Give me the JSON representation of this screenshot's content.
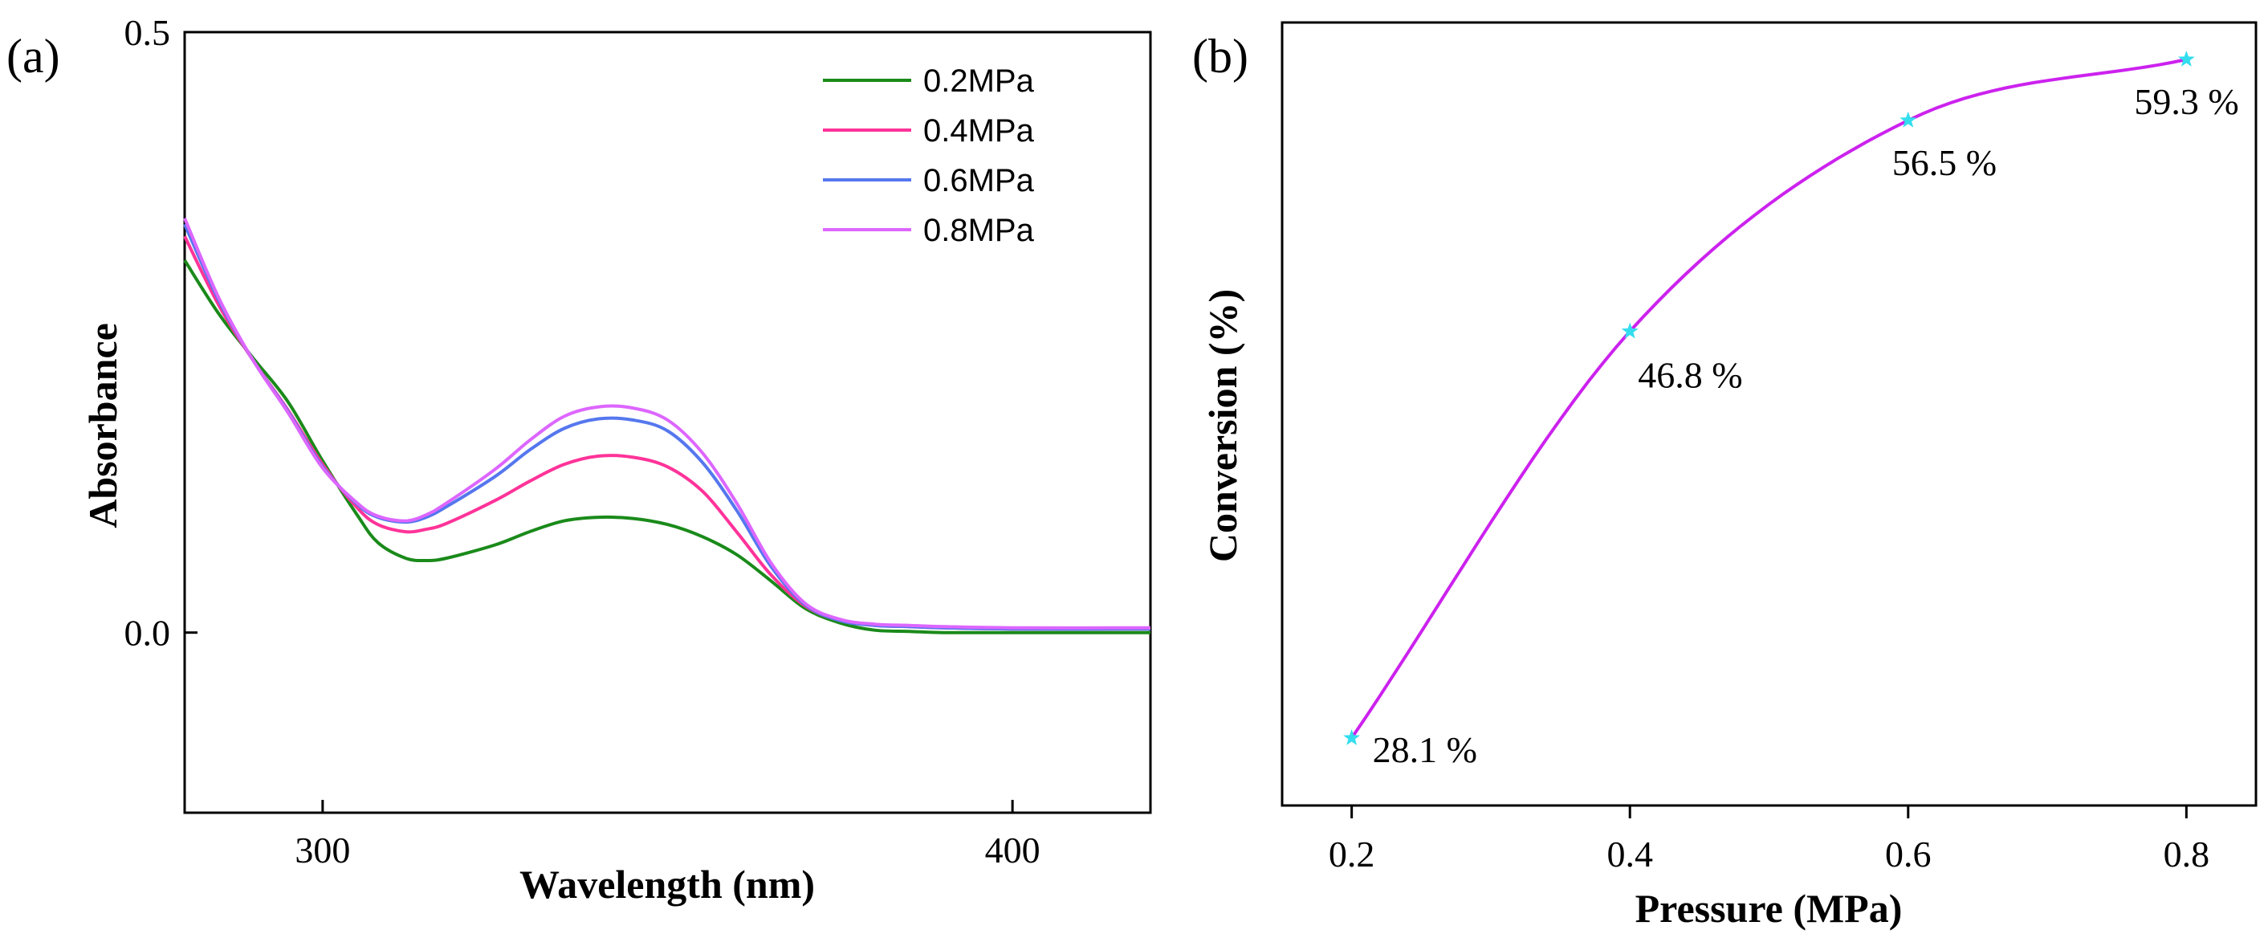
{
  "chart_data": [
    {
      "panel_label": "(a)",
      "type": "line",
      "xlabel": "Wavelength (nm)",
      "ylabel": "Absorbance",
      "xlim": [
        280,
        420
      ],
      "ylim": [
        -0.15,
        0.5
      ],
      "xticks": [
        {
          "value": 300,
          "label": "300"
        },
        {
          "value": 400,
          "label": "400"
        }
      ],
      "yticks": [
        {
          "value": 0.0,
          "label": "0.0"
        },
        {
          "value": 0.5,
          "label": "0.5"
        }
      ],
      "legend_position": "top-right",
      "series": [
        {
          "name": "0.2MPa",
          "color": "#1a8a1a",
          "x": [
            280,
            285,
            290,
            295,
            300,
            305,
            308,
            312,
            315,
            318,
            325,
            330,
            335,
            340,
            345,
            350,
            355,
            360,
            365,
            370,
            375,
            380,
            385,
            390,
            400,
            420
          ],
          "y": [
            0.31,
            0.265,
            0.228,
            0.192,
            0.143,
            0.098,
            0.075,
            0.062,
            0.06,
            0.062,
            0.073,
            0.084,
            0.093,
            0.096,
            0.095,
            0.09,
            0.08,
            0.065,
            0.043,
            0.02,
            0.008,
            0.002,
            0.001,
            0.0,
            0.0,
            0.0
          ]
        },
        {
          "name": "0.4MPa",
          "color": "#ff3399",
          "x": [
            280,
            285,
            290,
            295,
            300,
            305,
            308,
            312,
            315,
            318,
            325,
            330,
            335,
            340,
            345,
            350,
            355,
            360,
            365,
            370,
            375,
            380,
            385,
            390,
            400,
            420
          ],
          "y": [
            0.33,
            0.272,
            0.226,
            0.185,
            0.14,
            0.104,
            0.09,
            0.084,
            0.086,
            0.091,
            0.11,
            0.126,
            0.14,
            0.147,
            0.146,
            0.138,
            0.118,
            0.084,
            0.048,
            0.022,
            0.01,
            0.006,
            0.005,
            0.004,
            0.003,
            0.003
          ]
        },
        {
          "name": "0.6MPa",
          "color": "#5577ee",
          "x": [
            280,
            285,
            290,
            295,
            300,
            305,
            308,
            312,
            315,
            318,
            325,
            330,
            335,
            340,
            345,
            350,
            355,
            360,
            365,
            370,
            375,
            380,
            385,
            390,
            400,
            420
          ],
          "y": [
            0.34,
            0.276,
            0.226,
            0.184,
            0.138,
            0.107,
            0.096,
            0.092,
            0.096,
            0.105,
            0.13,
            0.152,
            0.17,
            0.178,
            0.177,
            0.168,
            0.142,
            0.102,
            0.055,
            0.023,
            0.01,
            0.006,
            0.005,
            0.004,
            0.003,
            0.003
          ]
        },
        {
          "name": "0.8MPa",
          "color": "#dd66ff",
          "x": [
            280,
            285,
            290,
            295,
            300,
            305,
            308,
            312,
            315,
            318,
            325,
            330,
            335,
            340,
            345,
            350,
            355,
            360,
            365,
            370,
            375,
            380,
            385,
            390,
            400,
            420
          ],
          "y": [
            0.345,
            0.278,
            0.226,
            0.183,
            0.137,
            0.108,
            0.097,
            0.093,
            0.098,
            0.108,
            0.136,
            0.16,
            0.18,
            0.188,
            0.187,
            0.177,
            0.15,
            0.108,
            0.058,
            0.024,
            0.011,
            0.007,
            0.006,
            0.005,
            0.004,
            0.004
          ]
        }
      ]
    },
    {
      "panel_label": "(b)",
      "type": "line",
      "xlabel": "Pressure (MPa)",
      "ylabel": "Conversion (%)",
      "xlim": [
        0.15,
        0.85
      ],
      "ylim": [
        25,
        61
      ],
      "xticks": [
        {
          "value": 0.2,
          "label": "0.2"
        },
        {
          "value": 0.4,
          "label": "0.4"
        },
        {
          "value": 0.6,
          "label": "0.6"
        },
        {
          "value": 0.8,
          "label": "0.8"
        }
      ],
      "line_color": "#cc22ee",
      "marker_color": "#33ddee",
      "series": [
        {
          "name": "Conversion",
          "x": [
            0.2,
            0.4,
            0.6,
            0.8
          ],
          "y": [
            28.1,
            46.8,
            56.5,
            59.3
          ],
          "labels": [
            "28.1 %",
            "46.8 %",
            "56.5 %",
            "59.3 %"
          ]
        }
      ]
    }
  ]
}
